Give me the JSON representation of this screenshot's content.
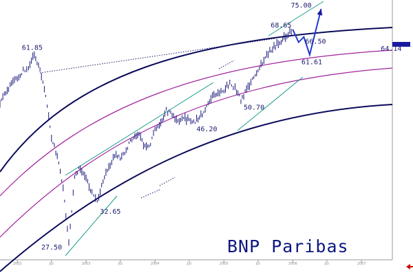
{
  "chart_data": {
    "type": "line",
    "title": "BNP Paribas",
    "watermark": "BNP Paribas",
    "x_tick_labels": [
      "2002",
      "Jul",
      "2003",
      "Jul",
      "2004",
      "Jul",
      "2005",
      "Jul",
      "2006",
      "Jul",
      "2007",
      "Jul"
    ],
    "x_range": [
      "2001-10",
      "2007-10"
    ],
    "ylim": [
      26,
      77
    ],
    "y_scale": "log",
    "price_series": {
      "name": "",
      "points": [
        [
          "2001-10-01",
          50.0
        ],
        [
          "2001-11-01",
          52.5
        ],
        [
          "2001-12-01",
          54.5
        ],
        [
          "2002-01-01",
          55.5
        ],
        [
          "2002-02-01",
          57.5
        ],
        [
          "2002-03-01",
          58.5
        ],
        [
          "2002-04-01",
          61.85
        ],
        [
          "2002-05-01",
          57.5
        ],
        [
          "2002-06-01",
          52.0
        ],
        [
          "2002-07-01",
          43.0
        ],
        [
          "2002-08-01",
          40.0
        ],
        [
          "2002-09-01",
          35.0
        ],
        [
          "2002-10-01",
          27.5
        ],
        [
          "2002-11-01",
          36.5
        ],
        [
          "2002-12-01",
          38.0
        ],
        [
          "2003-01-01",
          36.0
        ],
        [
          "2003-02-01",
          34.0
        ],
        [
          "2003-03-01",
          32.65
        ],
        [
          "2003-04-01",
          36.0
        ],
        [
          "2003-05-01",
          38.0
        ],
        [
          "2003-06-01",
          40.0
        ],
        [
          "2003-07-01",
          39.5
        ],
        [
          "2003-08-01",
          41.0
        ],
        [
          "2003-09-01",
          43.0
        ],
        [
          "2003-10-01",
          44.0
        ],
        [
          "2003-11-01",
          42.0
        ],
        [
          "2003-12-01",
          41.5
        ],
        [
          "2004-01-01",
          44.5
        ],
        [
          "2004-02-01",
          46.0
        ],
        [
          "2004-03-01",
          48.5
        ],
        [
          "2004-04-01",
          47.5
        ],
        [
          "2004-05-01",
          46.5
        ],
        [
          "2004-06-01",
          47.0
        ],
        [
          "2004-07-01",
          46.5
        ],
        [
          "2004-08-01",
          46.2
        ],
        [
          "2004-09-01",
          47.5
        ],
        [
          "2004-10-01",
          49.0
        ],
        [
          "2004-11-01",
          51.5
        ],
        [
          "2004-12-01",
          52.0
        ],
        [
          "2005-01-01",
          53.0
        ],
        [
          "2005-02-01",
          54.5
        ],
        [
          "2005-03-01",
          53.5
        ],
        [
          "2005-04-01",
          50.7
        ],
        [
          "2005-05-01",
          53.0
        ],
        [
          "2005-06-01",
          55.5
        ],
        [
          "2005-07-01",
          57.5
        ],
        [
          "2005-08-01",
          60.5
        ],
        [
          "2005-09-01",
          62.5
        ],
        [
          "2005-10-01",
          64.0
        ],
        [
          "2005-11-01",
          65.5
        ],
        [
          "2005-12-01",
          67.0
        ],
        [
          "2006-01-01",
          68.65
        ]
      ]
    },
    "projection": [
      [
        "2006-01-01",
        68.65
      ],
      [
        "2006-02-01",
        65.0
      ],
      [
        "2006-03-01",
        66.5
      ],
      [
        "2006-04-01",
        61.61
      ],
      [
        "2006-06-01",
        75.0
      ]
    ],
    "levels": [
      {
        "label": "75.00",
        "x": "2006-06-01",
        "y": 75.0
      },
      {
        "label": "68.65",
        "x": "2006-01-01",
        "y": 68.65
      },
      {
        "label": "66.50",
        "x": "2006-03-01",
        "y": 66.5
      },
      {
        "label": "64.14",
        "x": "2006-08-01",
        "y": 64.14
      },
      {
        "label": "61.61",
        "x": "2006-04-01",
        "y": 61.61
      },
      {
        "label": "61.85",
        "x": "2002-04-01",
        "y": 61.85
      },
      {
        "label": "50.70",
        "x": "2005-04-01",
        "y": 50.7
      },
      {
        "label": "46.20",
        "x": "2004-08-01",
        "y": 46.2
      },
      {
        "label": "32.65",
        "x": "2003-03-01",
        "y": 32.65
      },
      {
        "label": "27.50",
        "x": "2002-10-01",
        "y": 27.5
      }
    ],
    "grid": false,
    "colors": {
      "price": "#15157a",
      "outer_band": "#0a0a5a",
      "inner_band": "#a0209c",
      "trend_channel": "#1a9a8a",
      "projection": "#2038d0",
      "watermark": "#0d1680",
      "last_price_tag": "#1a1aa0",
      "corner_arrow": "#cc0000"
    }
  }
}
